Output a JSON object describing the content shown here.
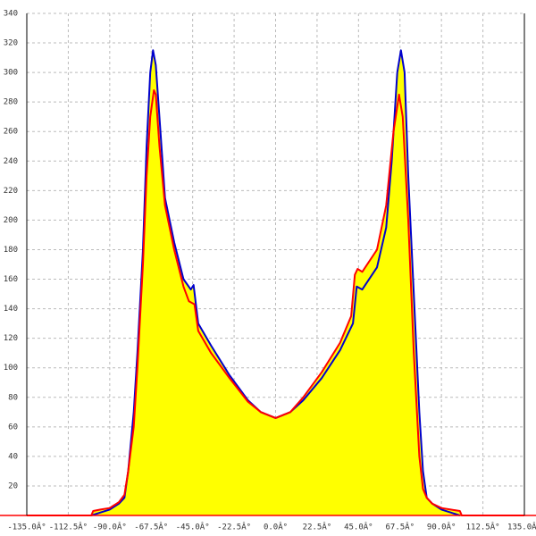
{
  "chart_data": {
    "type": "area",
    "xlim": [
      -135,
      135
    ],
    "ylim": [
      0,
      340
    ],
    "xticks": [
      {
        "value": -135,
        "label": "-135.0Â°"
      },
      {
        "value": -112.5,
        "label": "-112.5Â°"
      },
      {
        "value": -90,
        "label": "-90.0Â°"
      },
      {
        "value": -67.5,
        "label": "-67.5Â°"
      },
      {
        "value": -45,
        "label": "-45.0Â°"
      },
      {
        "value": -22.5,
        "label": "-22.5Â°"
      },
      {
        "value": 0,
        "label": "0.0Â°"
      },
      {
        "value": 22.5,
        "label": "22.5Â°"
      },
      {
        "value": 45,
        "label": "45.0Â°"
      },
      {
        "value": 67.5,
        "label": "67.5Â°"
      },
      {
        "value": 90,
        "label": "90.0Â°"
      },
      {
        "value": 112.5,
        "label": "112.5Â°"
      },
      {
        "value": 135,
        "label": "135.0Â°"
      }
    ],
    "yticks": [
      20,
      40,
      60,
      80,
      100,
      120,
      140,
      160,
      180,
      200,
      220,
      240,
      260,
      280,
      300,
      320,
      340
    ],
    "grid": true,
    "fill": "#ffff00",
    "series": [
      {
        "color": "#0000cc",
        "x": [
          -100,
          -95,
          -90,
          -85,
          -82,
          -80,
          -77,
          -75,
          -72,
          -70,
          -68,
          -66.5,
          -65,
          -62.5,
          -60,
          -55,
          -50,
          -46,
          -44.5,
          -42,
          -35,
          -25,
          -15,
          -8,
          0,
          8,
          15,
          25,
          35,
          42,
          44,
          47,
          55,
          60,
          63,
          66,
          68,
          70,
          72,
          75,
          78,
          80,
          82,
          85,
          90,
          95,
          100
        ],
        "values": [
          0,
          2,
          4,
          8,
          12,
          30,
          70,
          110,
          180,
          250,
          300,
          315,
          305,
          260,
          215,
          185,
          160,
          153,
          156,
          130,
          115,
          95,
          78,
          70,
          66,
          70,
          78,
          93,
          112,
          130,
          155,
          153,
          168,
          195,
          240,
          300,
          315,
          300,
          230,
          150,
          70,
          30,
          12,
          8,
          4,
          2,
          0
        ]
      },
      {
        "color": "#ff0000",
        "x": [
          -135,
          -100,
          -99,
          -95,
          -90,
          -85,
          -82,
          -80,
          -77,
          -75,
          -72,
          -70,
          -68,
          -66,
          -65,
          -63,
          -60,
          -55,
          -50,
          -47,
          -44,
          -42,
          -35,
          -25,
          -15,
          -8,
          0,
          8,
          15,
          25,
          35,
          41,
          43,
          44.5,
          47,
          55,
          60,
          64,
          67,
          69,
          72,
          75,
          78,
          80,
          82,
          85,
          90,
          95,
          100,
          101,
          135
        ],
        "values": [
          0,
          0,
          3,
          4,
          5,
          9,
          14,
          30,
          60,
          100,
          170,
          230,
          270,
          288,
          285,
          250,
          210,
          180,
          155,
          145,
          143,
          125,
          110,
          93,
          77,
          70,
          66,
          70,
          80,
          97,
          117,
          135,
          163,
          167,
          165,
          180,
          210,
          260,
          285,
          270,
          200,
          110,
          40,
          18,
          12,
          8,
          5,
          4,
          3,
          0,
          0
        ]
      }
    ]
  }
}
